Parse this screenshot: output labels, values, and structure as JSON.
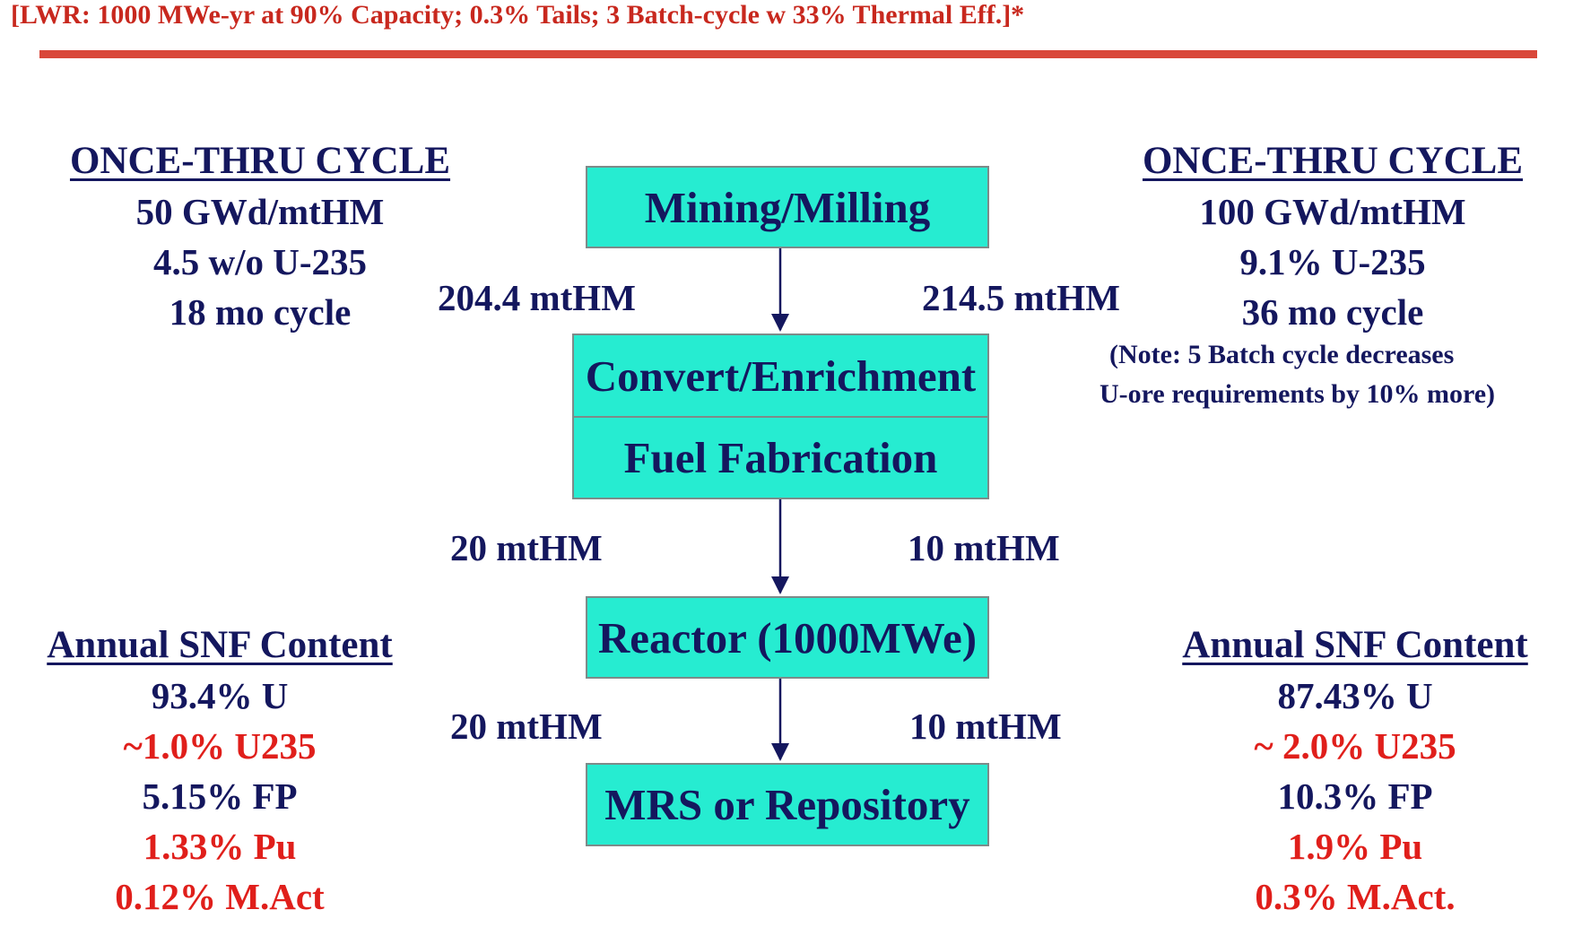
{
  "header": {
    "title": "[LWR: 1000 MWe-yr at 90% Capacity; 0.3% Tails; 3 Batch-cycle w 33% Thermal Eff.]*"
  },
  "left": {
    "cycle_title": "ONCE-THRU CYCLE",
    "cycle_lines": [
      "50 GWd/mtHM",
      "4.5 w/o U-235",
      "18 mo cycle"
    ],
    "snf_title": "Annual SNF Content",
    "snf_lines": [
      "93.4% U",
      "~1.0% U235",
      "5.15% FP",
      "1.33% Pu",
      "0.12% M.Act"
    ]
  },
  "right": {
    "cycle_title": "ONCE-THRU CYCLE",
    "cycle_lines": [
      "100 GWd/mtHM",
      "9.1% U-235",
      "36 mo cycle"
    ],
    "note_lines": [
      "(Note: 5 Batch cycle decreases",
      "U-ore requirements by 10% more)"
    ],
    "snf_title": "Annual SNF Content",
    "snf_lines": [
      "87.43% U",
      "~ 2.0% U235",
      "10.3% FP",
      "1.9% Pu",
      "0.3% M.Act."
    ]
  },
  "flow": {
    "nodes": [
      "Mining/Milling",
      "Convert/Enrichment",
      "Fuel Fabrication",
      "Reactor (1000MWe)",
      "MRS or Repository"
    ],
    "labels": {
      "mining_left": "204.4 mtHM",
      "mining_right": "214.5 mtHM",
      "fab_left": "20 mtHM",
      "fab_right": "10 mtHM",
      "reactor_left": "20 mtHM",
      "reactor_right": "10 mtHM"
    }
  },
  "colors": {
    "navy": "#14175e",
    "red": "#e01f1b",
    "header_red": "#c8281e",
    "box_fill": "#26ecd1"
  }
}
